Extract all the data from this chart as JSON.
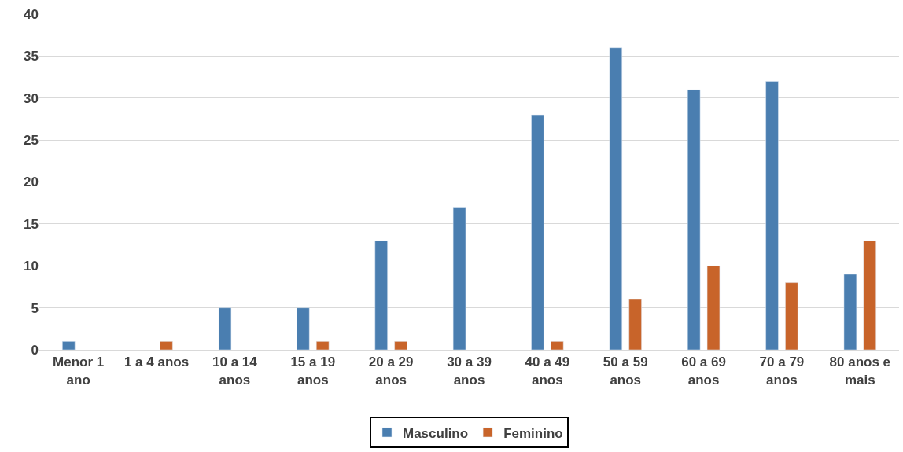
{
  "chart_data": {
    "type": "bar",
    "categories": [
      "Menor 1 ano",
      "1 a 4 anos",
      "10 a 14 anos",
      "15 a 19 anos",
      "20 a 29 anos",
      "30 a 39 anos",
      "40 a 49 anos",
      "50 a 59 anos",
      "60 a 69 anos",
      "70 a 79 anos",
      "80 anos e mais"
    ],
    "series": [
      {
        "name": "Masculino",
        "color": "#4a7eb0",
        "values": [
          1,
          null,
          5,
          5,
          13,
          17,
          28,
          36,
          31,
          32,
          9
        ]
      },
      {
        "name": "Feminino",
        "color": "#c8642a",
        "values": [
          null,
          1,
          null,
          1,
          1,
          null,
          1,
          6,
          10,
          8,
          13
        ]
      }
    ],
    "ylim": [
      0,
      40
    ],
    "yticks": [
      0,
      5,
      10,
      15,
      20,
      25,
      30,
      35,
      40
    ],
    "grid": "y",
    "legend": "bottom"
  }
}
